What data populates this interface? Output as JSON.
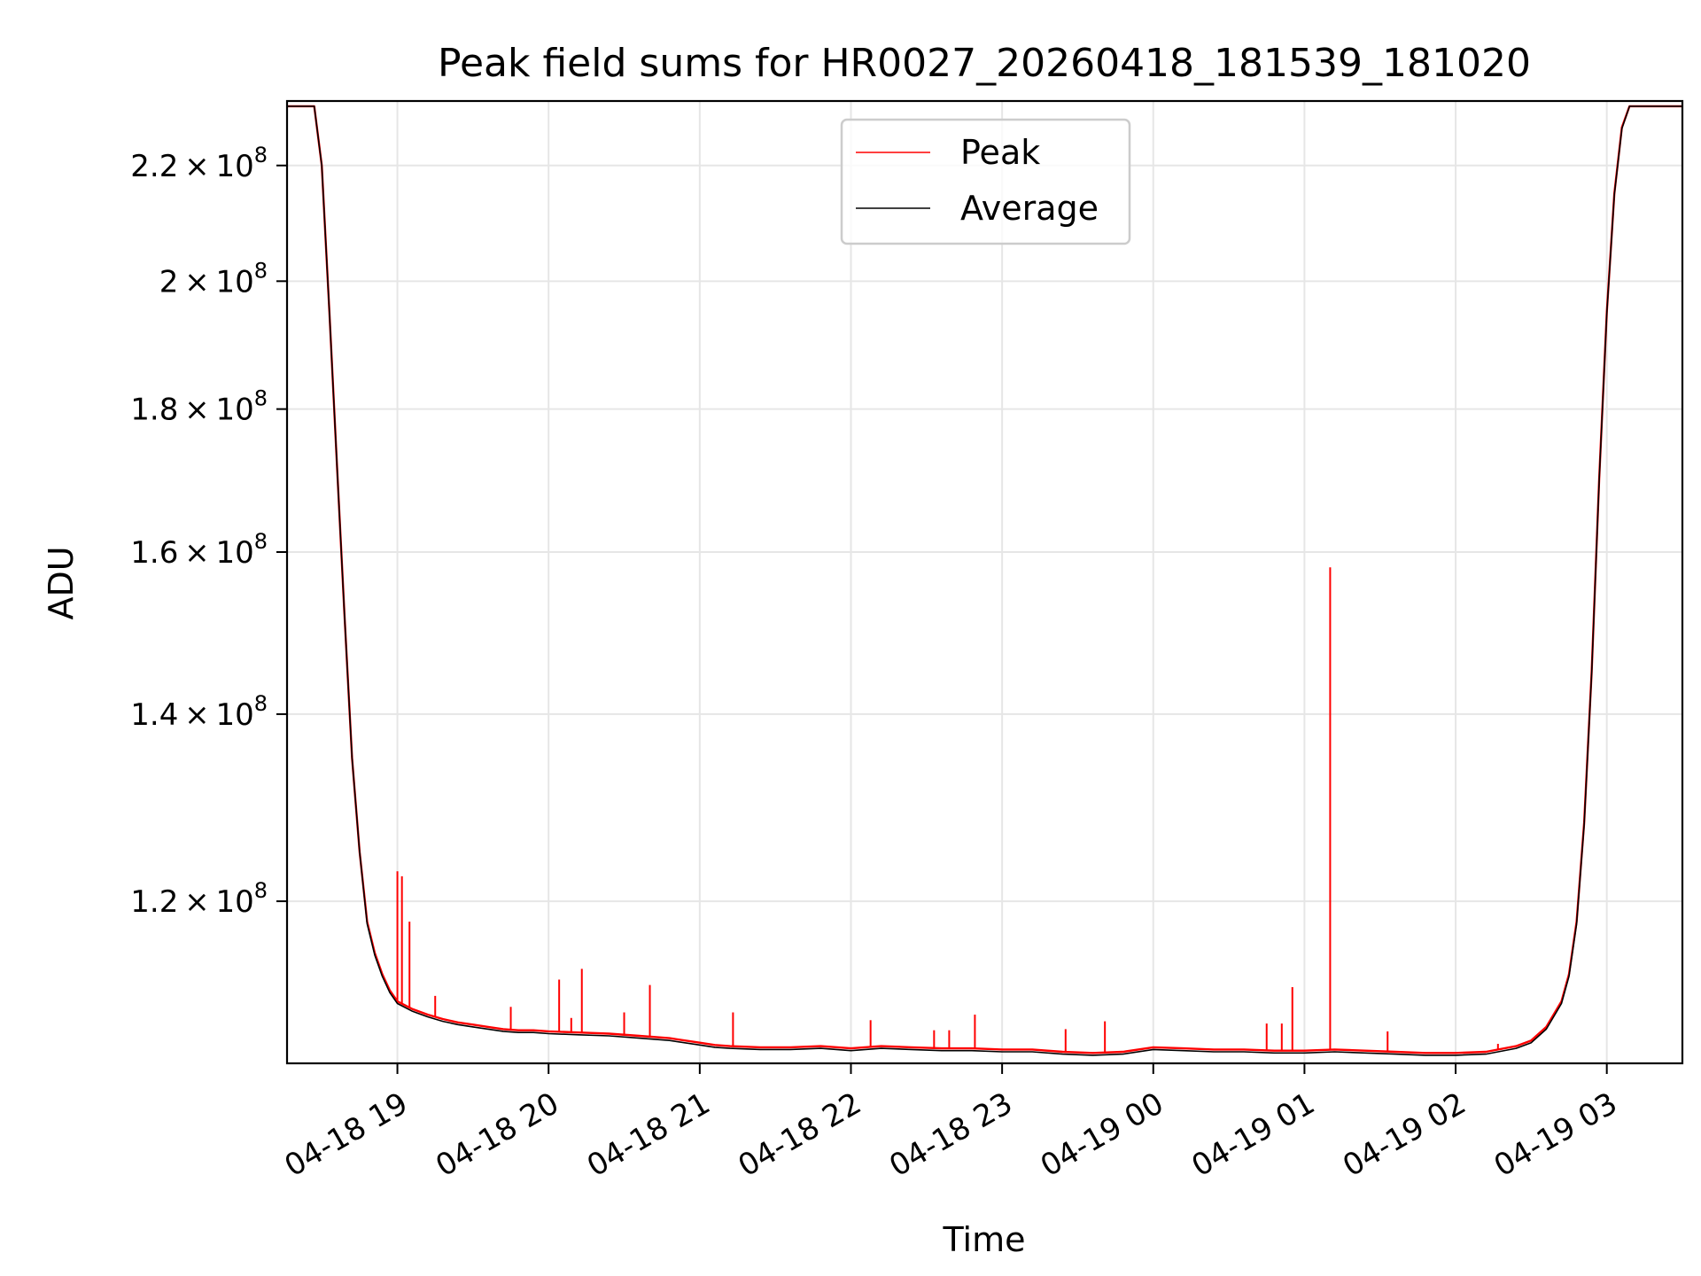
{
  "chart_data": {
    "type": "line",
    "title": "Peak field sums for HR0027_20260418_181539_181020",
    "xlabel": "Time",
    "ylabel": "ADU",
    "yscale": "log",
    "ylim": [
      105000000,
      232000000
    ],
    "xlim_hours": [
      18.27,
      27.5
    ],
    "grid": true,
    "legend_position": "upper center",
    "x_ticks": [
      {
        "hour": 19,
        "label": "04-18 19"
      },
      {
        "hour": 20,
        "label": "04-18 20"
      },
      {
        "hour": 21,
        "label": "04-18 21"
      },
      {
        "hour": 22,
        "label": "04-18 22"
      },
      {
        "hour": 23,
        "label": "04-18 23"
      },
      {
        "hour": 24,
        "label": "04-19 00"
      },
      {
        "hour": 25,
        "label": "04-19 01"
      },
      {
        "hour": 26,
        "label": "04-19 02"
      },
      {
        "hour": 27,
        "label": "04-19 03"
      }
    ],
    "y_ticks": [
      {
        "value": 120000000,
        "mantissa": "1.2",
        "exp": "8"
      },
      {
        "value": 140000000,
        "mantissa": "1.4",
        "exp": "8"
      },
      {
        "value": 160000000,
        "mantissa": "1.6",
        "exp": "8"
      },
      {
        "value": 180000000,
        "mantissa": "1.8",
        "exp": "8"
      },
      {
        "value": 200000000,
        "mantissa": "2",
        "exp": "8"
      },
      {
        "value": 220000000,
        "mantissa": "2.2",
        "exp": "8"
      }
    ],
    "series": [
      {
        "name": "Peak",
        "color": "#ff0000",
        "x": [
          18.27,
          18.45,
          18.5,
          18.55,
          18.6,
          18.65,
          18.7,
          18.75,
          18.8,
          18.85,
          18.9,
          18.95,
          19.0,
          19.1,
          19.2,
          19.3,
          19.4,
          19.5,
          19.6,
          19.7,
          19.8,
          19.9,
          20.0,
          20.2,
          20.4,
          20.6,
          20.8,
          21.0,
          21.1,
          21.2,
          21.4,
          21.6,
          21.8,
          22.0,
          22.2,
          22.4,
          22.6,
          22.8,
          23.0,
          23.2,
          23.4,
          23.6,
          23.8,
          24.0,
          24.2,
          24.4,
          24.6,
          24.8,
          25.0,
          25.2,
          25.4,
          25.6,
          25.8,
          26.0,
          26.2,
          26.4,
          26.5,
          26.6,
          26.7,
          26.75,
          26.8,
          26.85,
          26.9,
          26.95,
          27.0,
          27.05,
          27.1,
          27.15,
          27.5
        ],
        "y": [
          231000000,
          231000000,
          220000000,
          195000000,
          172000000,
          152000000,
          135000000,
          125000000,
          118000000,
          115000000,
          113000000,
          111500000,
          110500000,
          109800000,
          109300000,
          108900000,
          108600000,
          108400000,
          108200000,
          108000000,
          107900000,
          107900000,
          107800000,
          107700000,
          107600000,
          107400000,
          107200000,
          106800000,
          106600000,
          106500000,
          106400000,
          106400000,
          106500000,
          106300000,
          106500000,
          106400000,
          106300000,
          106300000,
          106200000,
          106200000,
          106000000,
          105900000,
          106000000,
          106400000,
          106300000,
          106200000,
          106200000,
          106100000,
          106100000,
          106200000,
          106100000,
          106000000,
          105900000,
          105900000,
          106000000,
          106500000,
          107000000,
          108200000,
          110500000,
          113000000,
          118000000,
          128000000,
          145000000,
          170000000,
          195000000,
          215000000,
          227000000,
          231000000,
          231000000
        ]
      },
      {
        "name": "Average",
        "color": "#000000",
        "x": [
          18.27,
          18.45,
          18.5,
          18.55,
          18.6,
          18.65,
          18.7,
          18.75,
          18.8,
          18.85,
          18.9,
          18.95,
          19.0,
          19.1,
          19.2,
          19.3,
          19.4,
          19.5,
          19.6,
          19.7,
          19.8,
          19.9,
          20.0,
          20.2,
          20.4,
          20.6,
          20.8,
          21.0,
          21.1,
          21.2,
          21.4,
          21.6,
          21.8,
          22.0,
          22.2,
          22.4,
          22.6,
          22.8,
          23.0,
          23.2,
          23.4,
          23.6,
          23.8,
          24.0,
          24.2,
          24.4,
          24.6,
          24.8,
          25.0,
          25.2,
          25.4,
          25.6,
          25.8,
          26.0,
          26.2,
          26.4,
          26.5,
          26.6,
          26.7,
          26.75,
          26.8,
          26.85,
          26.9,
          26.95,
          27.0,
          27.05,
          27.1,
          27.15,
          27.5
        ],
        "y": [
          231000000,
          231000000,
          220000000,
          195000000,
          172000000,
          152000000,
          135000000,
          125000000,
          117800000,
          114800000,
          112800000,
          111300000,
          110300000,
          109600000,
          109100000,
          108700000,
          108400000,
          108200000,
          108000000,
          107800000,
          107700000,
          107700000,
          107600000,
          107500000,
          107400000,
          107200000,
          107000000,
          106600000,
          106400000,
          106300000,
          106200000,
          106200000,
          106300000,
          106100000,
          106300000,
          106200000,
          106100000,
          106100000,
          106000000,
          106000000,
          105800000,
          105700000,
          105800000,
          106200000,
          106100000,
          106000000,
          106000000,
          105900000,
          105900000,
          106000000,
          105900000,
          105800000,
          105700000,
          105700000,
          105800000,
          106300000,
          106800000,
          108000000,
          110300000,
          112800000,
          117800000,
          127800000,
          144800000,
          169800000,
          194800000,
          214800000,
          226800000,
          231000000,
          231000000
        ]
      }
    ],
    "spikes": [
      {
        "x": 19.0,
        "y": 123000000
      },
      {
        "x": 19.03,
        "y": 122500000
      },
      {
        "x": 19.08,
        "y": 118000000
      },
      {
        "x": 19.25,
        "y": 111000000
      },
      {
        "x": 19.75,
        "y": 110000000
      },
      {
        "x": 20.07,
        "y": 112500000
      },
      {
        "x": 20.15,
        "y": 109000000
      },
      {
        "x": 20.22,
        "y": 113500000
      },
      {
        "x": 20.5,
        "y": 109500000
      },
      {
        "x": 20.67,
        "y": 112000000
      },
      {
        "x": 21.22,
        "y": 109500000
      },
      {
        "x": 22.13,
        "y": 108800000
      },
      {
        "x": 22.55,
        "y": 107900000
      },
      {
        "x": 22.65,
        "y": 107900000
      },
      {
        "x": 22.82,
        "y": 109300000
      },
      {
        "x": 23.42,
        "y": 108000000
      },
      {
        "x": 23.68,
        "y": 108700000
      },
      {
        "x": 24.75,
        "y": 108500000
      },
      {
        "x": 24.85,
        "y": 108500000
      },
      {
        "x": 24.92,
        "y": 111800000
      },
      {
        "x": 25.17,
        "y": 158000000
      },
      {
        "x": 25.55,
        "y": 107800000
      },
      {
        "x": 26.28,
        "y": 106700000
      }
    ]
  }
}
